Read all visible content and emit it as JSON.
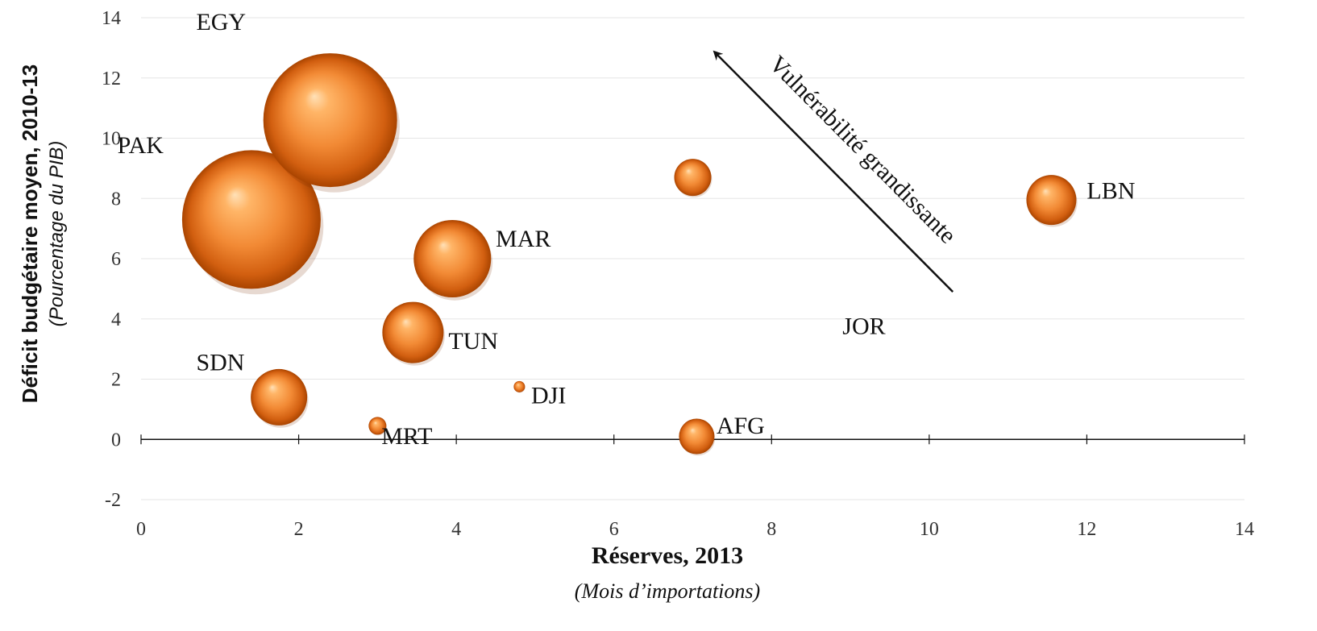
{
  "chart_data": {
    "type": "bubble",
    "xlabel": "Réserves, 2013",
    "xlabel_sub": "(Mois d’importations)",
    "ylabel": "Déficit budgétaire moyen, 2010-13",
    "ylabel_sub": "(Pourcentage du PIB)",
    "xlim": [
      0,
      14
    ],
    "ylim": [
      -2,
      14
    ],
    "x_ticks": [
      0,
      2,
      4,
      6,
      8,
      10,
      12,
      14
    ],
    "y_ticks": [
      -2,
      0,
      2,
      4,
      6,
      8,
      10,
      12,
      14
    ],
    "grid": "horizontal",
    "bubble_color": "#e8711a",
    "annotation": {
      "text": "Vulnérabilité grandissante",
      "from": [
        10.3,
        4.9
      ],
      "to": [
        7.3,
        12.8
      ]
    },
    "points": [
      {
        "label": "EGY",
        "x": 2.4,
        "y": 10.6,
        "size": 83,
        "label_x": 0.7,
        "label_y": 13.6
      },
      {
        "label": "PAK",
        "x": 1.4,
        "y": 7.3,
        "size": 86,
        "label_x": -0.3,
        "label_y": 9.5
      },
      {
        "label": "MAR",
        "x": 3.95,
        "y": 6.0,
        "size": 48,
        "label_x": 4.5,
        "label_y": 6.4
      },
      {
        "label": "TUN",
        "x": 3.45,
        "y": 3.55,
        "size": 38,
        "label_x": 3.9,
        "label_y": 3.0
      },
      {
        "label": "SDN",
        "x": 1.75,
        "y": 1.4,
        "size": 35,
        "label_x": 0.7,
        "label_y": 2.3
      },
      {
        "label": "MRT",
        "x": 3.0,
        "y": 0.45,
        "size": 11,
        "label_x": 3.05,
        "label_y": -0.15
      },
      {
        "label": "DJI",
        "x": 4.8,
        "y": 1.75,
        "size": 7,
        "label_x": 4.95,
        "label_y": 1.2
      },
      {
        "label": "AFG",
        "x": 7.05,
        "y": 0.1,
        "size": 22,
        "label_x": 7.3,
        "label_y": 0.2
      },
      {
        "label": "",
        "x": 7.0,
        "y": 8.7,
        "size": 23
      },
      {
        "label": "LBN",
        "x": 11.55,
        "y": 7.95,
        "size": 31,
        "label_x": 12.0,
        "label_y": 8.0
      },
      {
        "label": "JOR",
        "label_only": true,
        "label_x": 8.9,
        "label_y": 3.5
      }
    ]
  }
}
